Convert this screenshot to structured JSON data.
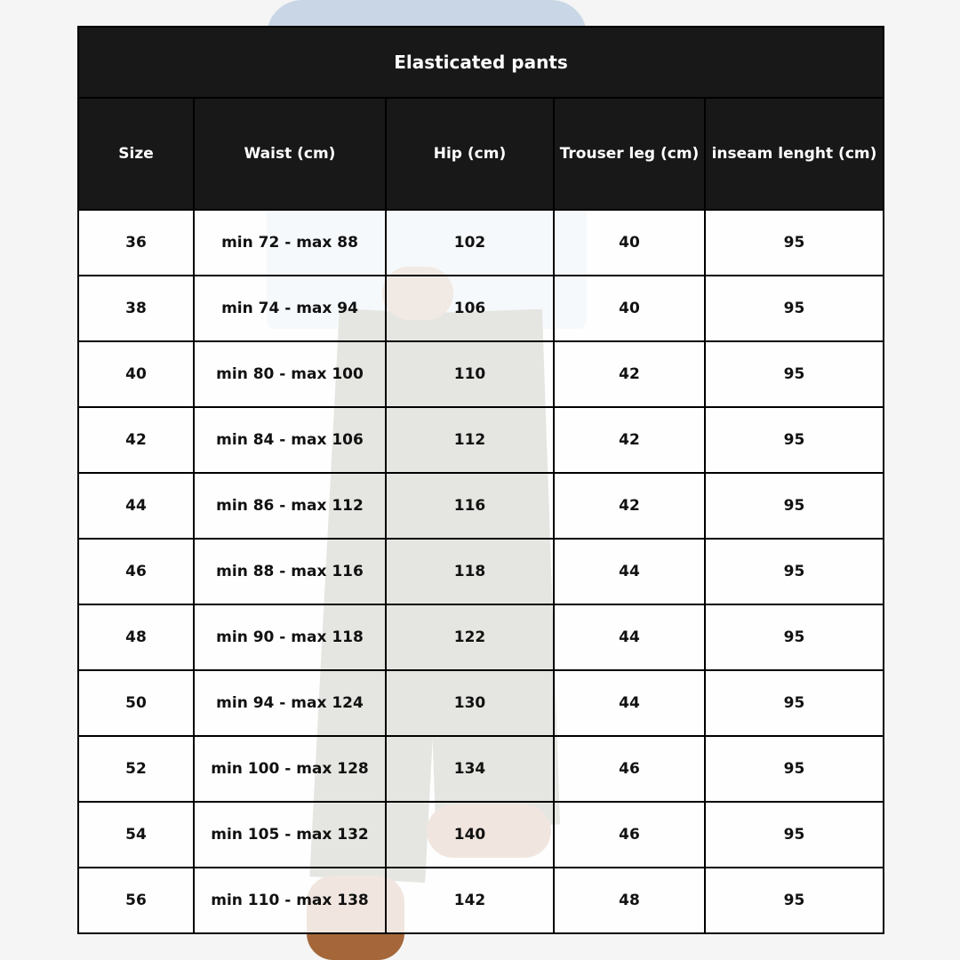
{
  "title": "Elasticated pants",
  "columns": [
    "Size",
    "Waist (cm)",
    "Hip (cm)",
    "Trouser leg (cm)",
    "inseam lenght (cm)"
  ],
  "rows": [
    [
      "36",
      "min 72 - max 88",
      "102",
      "40",
      "95"
    ],
    [
      "38",
      "min 74 - max 94",
      "106",
      "40",
      "95"
    ],
    [
      "40",
      "min 80 - max 100",
      "110",
      "42",
      "95"
    ],
    [
      "42",
      "min 84 - max 106",
      "112",
      "42",
      "95"
    ],
    [
      "44",
      "min 86 - max 112",
      "116",
      "42",
      "95"
    ],
    [
      "46",
      "min 88 - max 116",
      "118",
      "44",
      "95"
    ],
    [
      "48",
      "min 90 - max 118",
      "122",
      "44",
      "95"
    ],
    [
      "50",
      "min 94 - max 124",
      "130",
      "44",
      "95"
    ],
    [
      "52",
      "min 100 - max 128",
      "134",
      "46",
      "95"
    ],
    [
      "54",
      "min 105 - max 132",
      "140",
      "46",
      "95"
    ],
    [
      "56",
      "min 110 - max 138",
      "142",
      "48",
      "95"
    ]
  ],
  "colors": {
    "header_bg": "#181818",
    "header_text": "#ffffff",
    "border": "#000000"
  }
}
